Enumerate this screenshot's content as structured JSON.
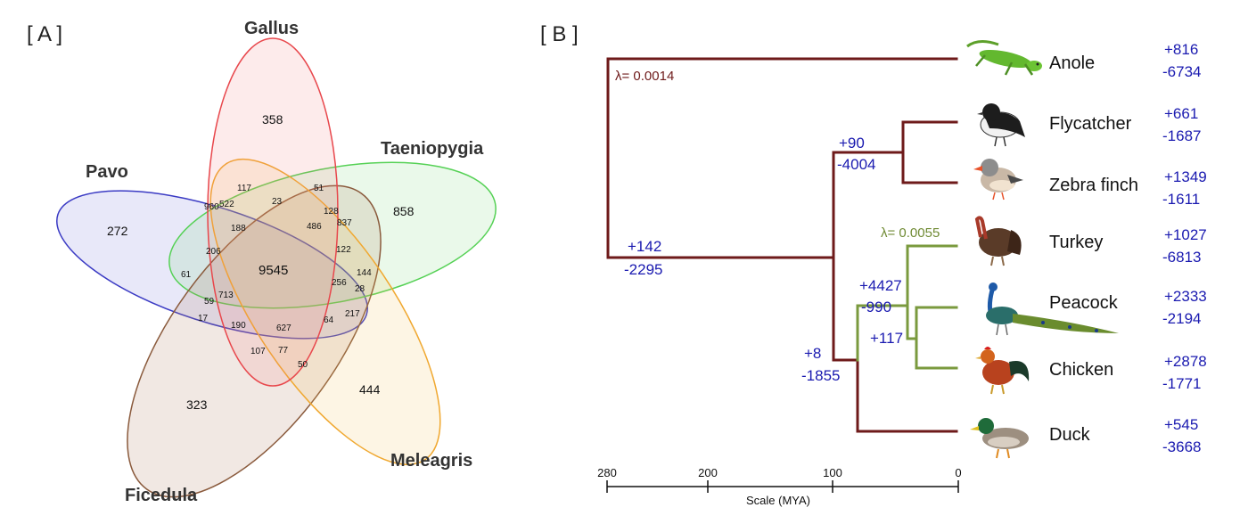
{
  "panelA": {
    "label": "[ A ]",
    "sets": {
      "gallus": "Gallus",
      "taeniopygia": "Taeniopygia",
      "pavo": "Pavo",
      "meleagris": "Meleagris",
      "ficedula": "Ficedula"
    },
    "counts": {
      "gallus_only": "358",
      "taeniopygia_only": "858",
      "pavo_only": "272",
      "meleagris_only": "444",
      "ficedula_only": "323",
      "core": "9545",
      "c117": "117",
      "c23": "23",
      "c51": "51",
      "c960": "960",
      "c522": "522",
      "c128": "128",
      "c188": "188",
      "c486": "486",
      "c837": "837",
      "c206": "206",
      "c122": "122",
      "c61": "61",
      "c144": "144",
      "c256": "256",
      "c28": "28",
      "c59": "59",
      "c713": "713",
      "c17": "17",
      "c217": "217",
      "c190": "190",
      "c627": "627",
      "c64": "64",
      "c107": "107",
      "c77": "77",
      "c50": "50"
    },
    "colors": {
      "gallus": "#e8474c",
      "taeniopygia": "#55d155",
      "pavo": "#3b3bc4",
      "meleagris": "#f0a830",
      "ficedula": "#8a5a3c"
    }
  },
  "panelB": {
    "label": "[ B ]",
    "taxa": [
      {
        "name": "Anole",
        "gain": "+816",
        "loss": "-6734",
        "image": "anole-lizard-icon"
      },
      {
        "name": "Flycatcher",
        "gain": "+661",
        "loss": "-1687",
        "image": "flycatcher-bird-icon"
      },
      {
        "name": "Zebra finch",
        "gain": "+1349",
        "loss": "-1611",
        "image": "zebra-finch-icon"
      },
      {
        "name": "Turkey",
        "gain": "+1027",
        "loss": "-6813",
        "image": "turkey-icon"
      },
      {
        "name": "Peacock",
        "gain": "+2333",
        "loss": "-2194",
        "image": "peacock-icon"
      },
      {
        "name": "Chicken",
        "gain": "+2878",
        "loss": "-1771",
        "image": "chicken-icon"
      },
      {
        "name": "Duck",
        "gain": "+545",
        "loss": "-3668",
        "image": "duck-icon"
      }
    ],
    "nodes": {
      "root": {
        "lambda": "λ= 0.0014"
      },
      "birds": {
        "gain": "+142",
        "loss": "-2295"
      },
      "passerines": {
        "gain": "+90",
        "loss": "-4004"
      },
      "neognath": {
        "gain": "+8",
        "loss": "-1855"
      },
      "galliformes": {
        "gain": "+4427",
        "loss": "-990",
        "lambda": "λ= 0.0055"
      },
      "peacock_chicken": {
        "gain": "+117"
      }
    },
    "scale": {
      "label": "Scale (MYA)",
      "ticks": [
        "280",
        "200",
        "100",
        "0"
      ]
    },
    "colors": {
      "tree_red": "#6e1a1a",
      "tree_green": "#7a9a3e",
      "numbers": "#1a1ab0"
    }
  }
}
